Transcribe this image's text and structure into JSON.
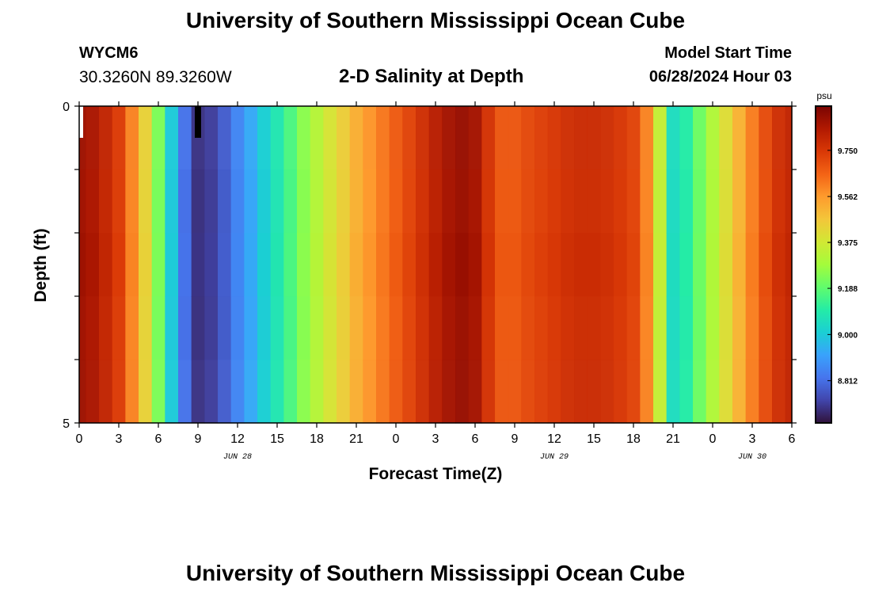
{
  "header": {
    "title": "University of Southern Mississippi Ocean Cube",
    "station": "WYCM6",
    "coordinates": "30.3260N  89.3260W",
    "subtitle": "2-D Salinity at Depth",
    "model_start_label": "Model Start Time",
    "model_start_value": "06/28/2024 Hour 03"
  },
  "footer": {
    "title": "University of Southern Mississippi Ocean Cube"
  },
  "chart_data": {
    "type": "heatmap",
    "title": "2-D Salinity at Depth",
    "xlabel": "Forecast Time(Z)",
    "ylabel": "Depth (ft)",
    "x_range": [
      0,
      54
    ],
    "y_range": [
      0,
      5
    ],
    "x_ticks": [
      {
        "hour": 0,
        "label": "0"
      },
      {
        "hour": 3,
        "label": "3"
      },
      {
        "hour": 6,
        "label": "6"
      },
      {
        "hour": 9,
        "label": "9"
      },
      {
        "hour": 12,
        "label": "12"
      },
      {
        "hour": 15,
        "label": "15"
      },
      {
        "hour": 18,
        "label": "18"
      },
      {
        "hour": 21,
        "label": "21"
      },
      {
        "hour": 24,
        "label": "0"
      },
      {
        "hour": 27,
        "label": "3"
      },
      {
        "hour": 30,
        "label": "6"
      },
      {
        "hour": 33,
        "label": "9"
      },
      {
        "hour": 36,
        "label": "12"
      },
      {
        "hour": 39,
        "label": "15"
      },
      {
        "hour": 42,
        "label": "18"
      },
      {
        "hour": 45,
        "label": "21"
      },
      {
        "hour": 48,
        "label": "0"
      },
      {
        "hour": 51,
        "label": "3"
      },
      {
        "hour": 54,
        "label": "6"
      }
    ],
    "y_ticks": [
      {
        "value": 0,
        "label": "0"
      },
      {
        "value": 5,
        "label": "5"
      }
    ],
    "date_labels": [
      {
        "hour": 12,
        "label": "JUN 28"
      },
      {
        "hour": 36,
        "label": "JUN 29"
      },
      {
        "hour": 51,
        "label": "JUN 30"
      }
    ],
    "colorbar": {
      "units": "psu",
      "min": 8.64,
      "max": 9.93,
      "tick_values": [
        9.75,
        9.562,
        9.375,
        9.188,
        9.0,
        8.812
      ],
      "tick_labels": [
        "9.750",
        "9.562",
        "9.375",
        "9.188",
        "9.000",
        "8.812"
      ],
      "colors": [
        "#30123b",
        "#4145ab",
        "#4675ed",
        "#39a2fc",
        "#1bcfd4",
        "#24eca6",
        "#61fc6c",
        "#a4fc3b",
        "#d1e834",
        "#f3c63a",
        "#fe9b2d",
        "#f36315",
        "#d93806",
        "#b11901",
        "#7a0402"
      ]
    },
    "salinity_by_hour": [
      9.87,
      9.85,
      9.8,
      9.74,
      9.6,
      9.44,
      9.23,
      9.0,
      8.82,
      8.7,
      8.72,
      8.78,
      8.86,
      8.93,
      9.01,
      9.08,
      9.16,
      9.25,
      9.32,
      9.39,
      9.45,
      9.52,
      9.57,
      9.62,
      9.67,
      9.72,
      9.77,
      9.82,
      9.86,
      9.88,
      9.86,
      9.76,
      9.68,
      9.68,
      9.71,
      9.73,
      9.75,
      9.77,
      9.78,
      9.78,
      9.77,
      9.75,
      9.72,
      9.6,
      9.35,
      9.05,
      9.1,
      9.21,
      9.31,
      9.41,
      9.51,
      9.61,
      9.7,
      9.77,
      9.8
    ],
    "depth_layers": 5
  }
}
